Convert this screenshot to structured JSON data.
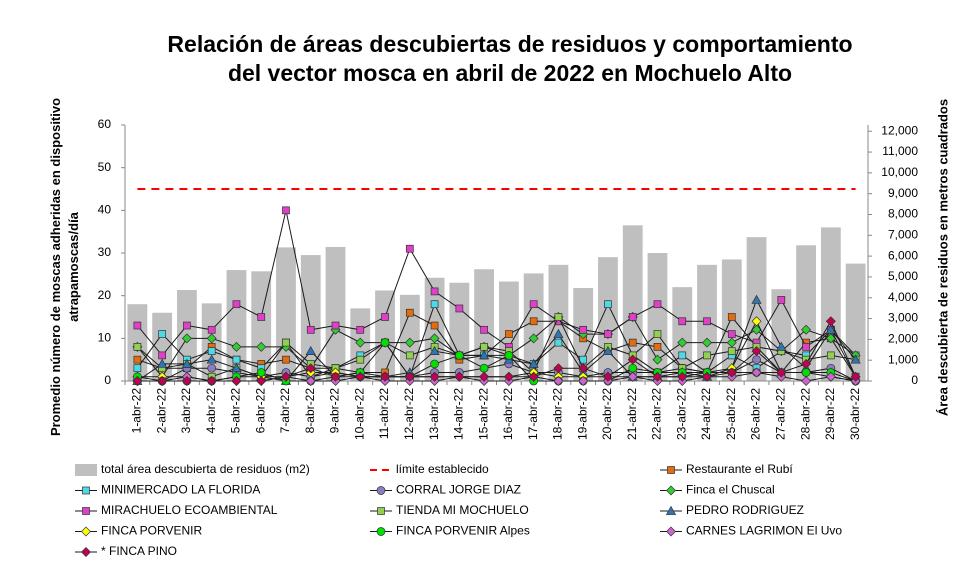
{
  "chart_data": {
    "type": "bar-line",
    "title": "Relación de áreas descubiertas de residuos y comportamiento del vector mosca en abril  de 2022 en Mochuelo Alto",
    "y_label": "Promedio número de moscas adheridas en dispositivo atrapamoscas/día",
    "y2_label": "Área descubierta de residuos en metros cuadrados",
    "categories": [
      "1-abr-22",
      "2-abr-22",
      "3-abr-22",
      "4-abr-22",
      "5-abr-22",
      "6-abr-22",
      "7-abr-22",
      "8-abr-22",
      "9-abr-22",
      "10-abr-22",
      "11-abr-22",
      "12-abr-22",
      "13-abr-22",
      "14-abr-22",
      "15-abr-22",
      "16-abr-22",
      "17-abr-22",
      "18-abr-22",
      "19-abr-22",
      "20-abr-22",
      "21-abr-22",
      "22-abr-22",
      "23-abr-22",
      "24-abr-22",
      "25-abr-22",
      "26-abr-22",
      "27-abr-22",
      "28-abr-22",
      "29-abr-22",
      "30-abr-22"
    ],
    "ylim": [
      0,
      60
    ],
    "yticks": [
      0,
      10,
      20,
      30,
      40,
      50,
      60
    ],
    "y2lim": [
      0,
      12300
    ],
    "y2ticks": [
      0,
      {
        "value": 1000,
        "label": "1,000"
      },
      {
        "value": 2000,
        "label": "2,000"
      },
      {
        "value": 3000,
        "label": "3,000"
      },
      {
        "value": 4000,
        "label": "4,000"
      },
      {
        "value": 5000,
        "label": "5,000"
      },
      {
        "value": 6000,
        "label": "6,000"
      },
      {
        "value": 7000,
        "label": "7,000"
      },
      {
        "value": 8000,
        "label": "8,000"
      },
      {
        "value": 9000,
        "label": "9,000"
      },
      {
        "value": 10000,
        "label": "10,000"
      },
      {
        "value": 11000,
        "label": "11,000"
      },
      {
        "value": 12000,
        "label": "12,000"
      }
    ],
    "line_color": "#1a1a1a",
    "series": [
      {
        "name": "total área descubierta de residuos (m2)",
        "kind": "bar",
        "axis": "y2",
        "color": "#bfbfbf",
        "values": [
          3690,
          3280,
          4370,
          3730,
          5330,
          5270,
          6420,
          6050,
          6440,
          3490,
          4350,
          4140,
          4960,
          4720,
          5370,
          4780,
          5170,
          5580,
          4470,
          5950,
          7480,
          6150,
          4510,
          5580,
          5840,
          6910,
          4410,
          6520,
          7380,
          5640
        ]
      },
      {
        "name": "límite establecido",
        "kind": "dashed",
        "color": "#ff0000",
        "values": [
          45,
          45,
          45,
          45,
          45,
          45,
          45,
          45,
          45,
          45,
          45,
          45,
          45,
          45,
          45,
          45,
          45,
          45,
          45,
          45,
          45,
          45,
          45,
          45,
          45,
          45,
          45,
          45,
          45,
          45
        ]
      },
      {
        "name": "Restaurante el Rubí",
        "marker": "square",
        "color": "#e46c0a",
        "values": [
          5,
          3,
          3,
          8,
          5,
          4,
          5,
          3,
          3,
          2,
          2,
          16,
          13,
          5,
          6,
          11,
          14,
          14,
          10,
          7,
          9,
          8,
          3,
          2,
          15,
          8,
          2,
          9,
          10,
          1
        ]
      },
      {
        "name": "MINIMERCADO LA FLORIDA",
        "marker": "square",
        "color": "#4dd9e8",
        "values": [
          3,
          11,
          5,
          7,
          5,
          3,
          9,
          1,
          3,
          6,
          9,
          1,
          18,
          6,
          6,
          6,
          4,
          9,
          5,
          18,
          6,
          2,
          6,
          2,
          6,
          3,
          7,
          6,
          12,
          6
        ]
      },
      {
        "name": "CORRAL JORGE DIAZ",
        "marker": "circle",
        "color": "#8e7cc3",
        "values": [
          0,
          0,
          3,
          3,
          2,
          1,
          2,
          1,
          2,
          1,
          1,
          1,
          2,
          2,
          3,
          4,
          2,
          2,
          1,
          2,
          2,
          2,
          3,
          2,
          2,
          5,
          2,
          2,
          3,
          0
        ]
      },
      {
        "name": "Finca el Chuscal",
        "marker": "diamond",
        "color": "#33cc33",
        "values": [
          8,
          1,
          10,
          10,
          8,
          8,
          8,
          3,
          12,
          9,
          9,
          9,
          10,
          6,
          8,
          6,
          10,
          15,
          11,
          11,
          15,
          5,
          9,
          9,
          9,
          12,
          7,
          12,
          10,
          6
        ]
      },
      {
        "name": "MIRACHUELO ECOAMBIENTAL",
        "marker": "square",
        "color": "#e040c8",
        "values": [
          13,
          6,
          13,
          12,
          18,
          15,
          40,
          12,
          13,
          12,
          15,
          31,
          21,
          17,
          12,
          8,
          18,
          14,
          12,
          11,
          15,
          18,
          14,
          14,
          11,
          9,
          19,
          8,
          12,
          1
        ]
      },
      {
        "name": "TIENDA MI MOCHUELO",
        "marker": "square",
        "color": "#92d050",
        "values": [
          8,
          3,
          4,
          1,
          3,
          1,
          9,
          4,
          3,
          5,
          9,
          6,
          8,
          6,
          8,
          7,
          2,
          15,
          3,
          8,
          6,
          11,
          3,
          6,
          7,
          8,
          7,
          5,
          6,
          5
        ]
      },
      {
        "name": "PEDRO RODRIGUEZ",
        "marker": "triangle",
        "color": "#2e75b6",
        "values": [
          0,
          4,
          4,
          5,
          3,
          1,
          0,
          7,
          1,
          2,
          1,
          2,
          7,
          6,
          6,
          5,
          4,
          11,
          2,
          7,
          1,
          1,
          2,
          1,
          3,
          19,
          8,
          3,
          12,
          5
        ]
      },
      {
        "name": "FINCA PORVENIR",
        "marker": "diamond",
        "color": "#ffff00",
        "values": [
          1,
          1,
          1,
          0,
          1,
          1,
          1,
          2,
          2,
          1,
          1,
          1,
          1,
          1,
          1,
          1,
          2,
          1,
          1,
          1,
          1,
          1,
          1,
          2,
          3,
          14,
          2,
          2,
          1,
          0
        ]
      },
      {
        "name": "FINCA PORVENIR Alpes",
        "marker": "circle",
        "color": "#00e000",
        "values": [
          1,
          0,
          0,
          0,
          1,
          2,
          0,
          0,
          1,
          2,
          9,
          1,
          4,
          6,
          3,
          6,
          0,
          0,
          0,
          0,
          3,
          2,
          2,
          2,
          2,
          2,
          2,
          2,
          2,
          0
        ]
      },
      {
        "name": "CARNES LAGRIMON El Uvo",
        "marker": "diamond",
        "color": "#cc66cc",
        "values": [
          0,
          0,
          1,
          0,
          0,
          0,
          1,
          0,
          0,
          1,
          0,
          0,
          0,
          1,
          0,
          0,
          1,
          0,
          0,
          0,
          1,
          0,
          0,
          1,
          1,
          2,
          1,
          0,
          1,
          0
        ]
      },
      {
        "name": "* FINCA PINO",
        "marker": "diamond",
        "color": "#c00050",
        "values": [
          0,
          0,
          0,
          0,
          0,
          0,
          1,
          3,
          1,
          1,
          1,
          1,
          1,
          1,
          1,
          1,
          1,
          3,
          3,
          1,
          5,
          1,
          1,
          1,
          2,
          7,
          2,
          4,
          14,
          1
        ]
      }
    ]
  }
}
